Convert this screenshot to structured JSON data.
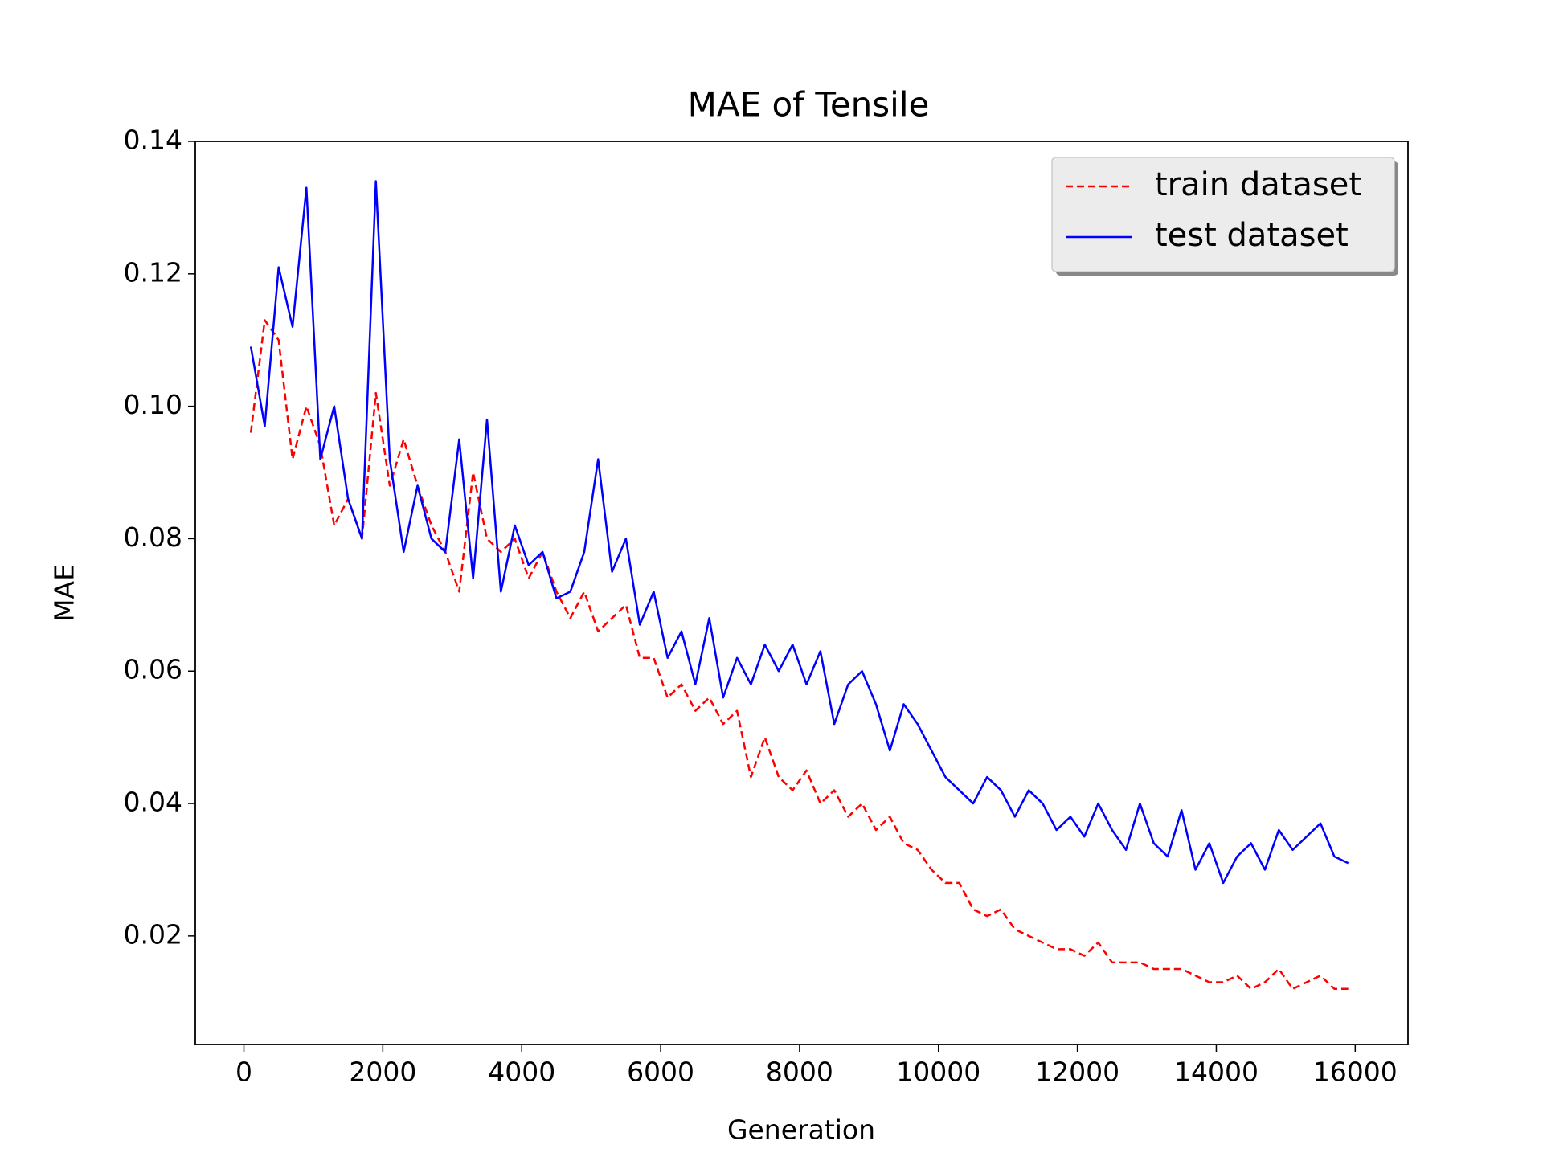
{
  "chart_data": {
    "type": "line",
    "title": "MAE of Tensile",
    "x_label": "Generation",
    "y_label": "MAE",
    "x": [
      100,
      300,
      500,
      700,
      900,
      1100,
      1300,
      1500,
      1700,
      1900,
      2100,
      2300,
      2500,
      2700,
      2900,
      3100,
      3300,
      3500,
      3700,
      3900,
      4100,
      4300,
      4500,
      4700,
      4900,
      5100,
      5300,
      5500,
      5700,
      5900,
      6100,
      6300,
      6500,
      6700,
      6900,
      7100,
      7300,
      7500,
      7700,
      7900,
      8100,
      8300,
      8500,
      8700,
      8900,
      9100,
      9300,
      9500,
      9700,
      9900,
      10100,
      10300,
      10500,
      10700,
      10900,
      11100,
      11300,
      11500,
      11700,
      11900,
      12100,
      12300,
      12500,
      12700,
      12900,
      13100,
      13300,
      13500,
      13700,
      13900,
      14100,
      14300,
      14500,
      14700,
      14900,
      15100,
      15300,
      15500,
      15700,
      15900
    ],
    "series": [
      {
        "name": "train dataset",
        "color": "#ff0000",
        "dash": true,
        "values": [
          0.096,
          0.113,
          0.11,
          0.092,
          0.1,
          0.094,
          0.082,
          0.086,
          0.08,
          0.102,
          0.088,
          0.095,
          0.088,
          0.082,
          0.078,
          0.072,
          0.09,
          0.08,
          0.078,
          0.08,
          0.074,
          0.078,
          0.072,
          0.068,
          0.072,
          0.066,
          0.068,
          0.07,
          0.062,
          0.062,
          0.056,
          0.058,
          0.054,
          0.056,
          0.052,
          0.054,
          0.044,
          0.05,
          0.044,
          0.042,
          0.045,
          0.04,
          0.042,
          0.038,
          0.04,
          0.036,
          0.038,
          0.034,
          0.033,
          0.03,
          0.028,
          0.028,
          0.024,
          0.023,
          0.024,
          0.021,
          0.02,
          0.019,
          0.018,
          0.018,
          0.017,
          0.019,
          0.016,
          0.016,
          0.016,
          0.015,
          0.015,
          0.015,
          0.014,
          0.013,
          0.013,
          0.014,
          0.012,
          0.013,
          0.015,
          0.012,
          0.013,
          0.014,
          0.012,
          0.012
        ]
      },
      {
        "name": "test dataset",
        "color": "#0000ff",
        "dash": false,
        "values": [
          0.109,
          0.097,
          0.121,
          0.112,
          0.133,
          0.092,
          0.1,
          0.086,
          0.08,
          0.134,
          0.092,
          0.078,
          0.088,
          0.08,
          0.078,
          0.095,
          0.074,
          0.098,
          0.072,
          0.082,
          0.076,
          0.078,
          0.071,
          0.072,
          0.078,
          0.092,
          0.075,
          0.08,
          0.067,
          0.072,
          0.062,
          0.066,
          0.058,
          0.068,
          0.056,
          0.062,
          0.058,
          0.064,
          0.06,
          0.064,
          0.058,
          0.063,
          0.052,
          0.058,
          0.06,
          0.055,
          0.048,
          0.055,
          0.052,
          0.048,
          0.044,
          0.042,
          0.04,
          0.044,
          0.042,
          0.038,
          0.042,
          0.04,
          0.036,
          0.038,
          0.035,
          0.04,
          0.036,
          0.033,
          0.04,
          0.034,
          0.032,
          0.039,
          0.03,
          0.034,
          0.028,
          0.032,
          0.034,
          0.03,
          0.036,
          0.033,
          0.035,
          0.037,
          0.032,
          0.031
        ]
      }
    ],
    "xlim": [
      -700,
      16760
    ],
    "ylim": [
      0.0036,
      0.14
    ],
    "xticks": [
      0,
      2000,
      4000,
      6000,
      8000,
      10000,
      12000,
      14000,
      16000
    ],
    "yticks": [
      0.02,
      0.04,
      0.06,
      {
        "value": 0.1,
        "label": "0.10"
      },
      0.08,
      0.12,
      0.14
    ],
    "legend": "upper right",
    "grid": false
  }
}
